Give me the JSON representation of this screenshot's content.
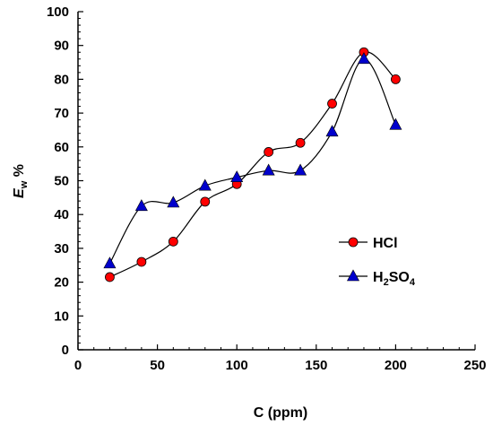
{
  "chart_data": {
    "type": "line",
    "title": "",
    "xlabel": "C  (ppm)",
    "ylabel_main": "E",
    "ylabel_sub": "w",
    "ylabel_suffix": " %",
    "xlim": [
      0,
      250
    ],
    "ylim": [
      0,
      100
    ],
    "xticks": [
      0,
      50,
      100,
      150,
      200,
      250
    ],
    "yticks": [
      0,
      10,
      20,
      30,
      40,
      50,
      60,
      70,
      80,
      90,
      100
    ],
    "grid": false,
    "legend_position": "right-middle",
    "series": [
      {
        "name": "HCl",
        "marker": "circle",
        "marker_color": "#ff0000",
        "line_color": "#000000",
        "x": [
          20,
          40,
          60,
          80,
          100,
          120,
          140,
          160,
          180,
          200
        ],
        "y": [
          21.5,
          26,
          32,
          43.8,
          49,
          58.5,
          61.2,
          72.8,
          88,
          80
        ]
      },
      {
        "name": "H2SO4",
        "marker": "triangle",
        "marker_color": "#0000cc",
        "line_color": "#000000",
        "x": [
          20,
          40,
          60,
          80,
          100,
          120,
          140,
          160,
          180,
          200
        ],
        "y": [
          25.5,
          42.5,
          43.5,
          48.5,
          51,
          53,
          53,
          64.5,
          86,
          66.5
        ]
      }
    ]
  },
  "legend": {
    "hcl_label": "HCl",
    "h2so4_parts": [
      "H",
      "2",
      "SO",
      "4"
    ]
  }
}
